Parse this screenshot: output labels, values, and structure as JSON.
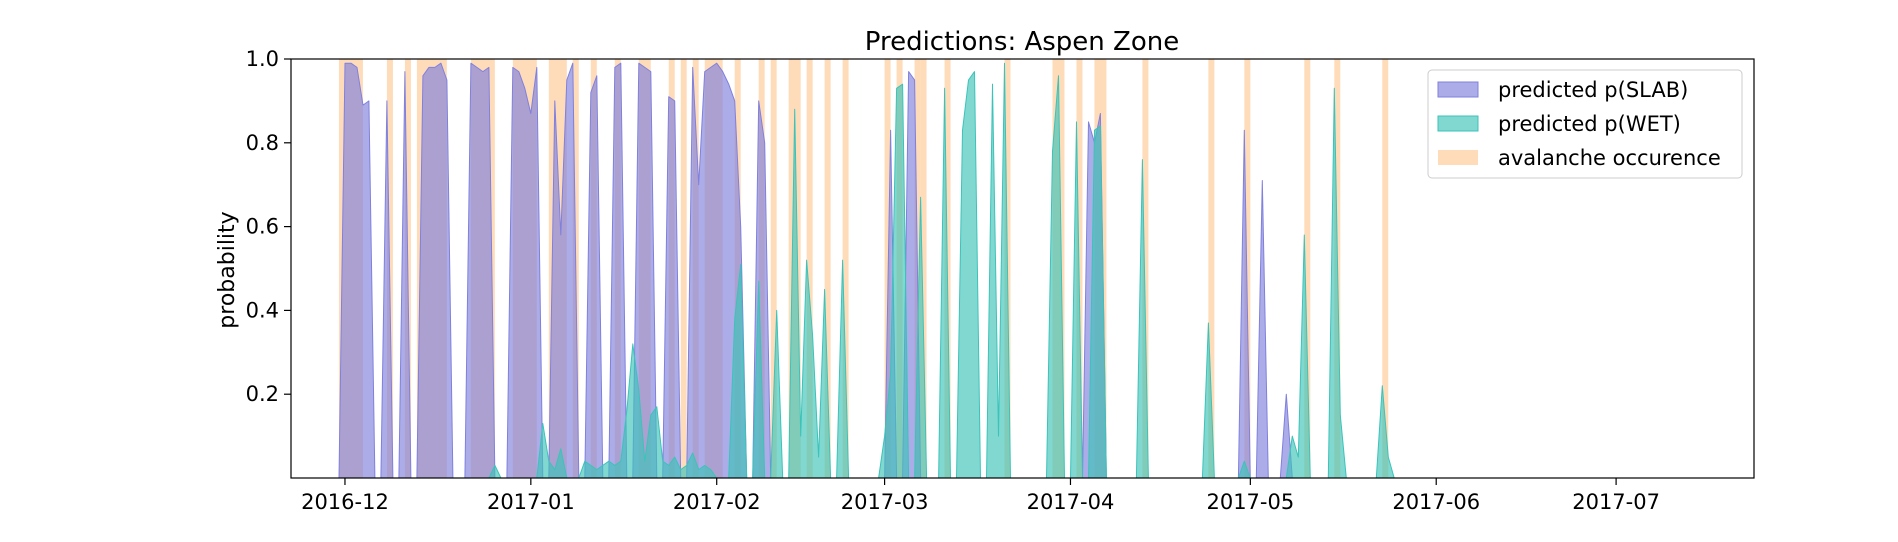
{
  "chart_data": {
    "type": "area",
    "title": "Predictions: Aspen Zone",
    "xlabel": "",
    "ylabel": "probability",
    "xlim": [
      "2016-11-22",
      "2017-07-24"
    ],
    "ylim": [
      0,
      1.0
    ],
    "x_ticks": [
      "2016-12",
      "2017-01",
      "2017-02",
      "2017-03",
      "2017-04",
      "2017-05",
      "2017-06",
      "2017-07"
    ],
    "y_ticks": [
      0.2,
      0.4,
      0.6,
      0.8,
      1.0
    ],
    "grid": false,
    "legend_position": "top-right",
    "series": [
      {
        "name": "predicted p(SLAB)",
        "color": "#8080dd",
        "points": [
          [
            "2016-11-30",
            0
          ],
          [
            "2016-12-01",
            0.99
          ],
          [
            "2016-12-02",
            0.99
          ],
          [
            "2016-12-03",
            0.98
          ],
          [
            "2016-12-04",
            0.89
          ],
          [
            "2016-12-05",
            0.9
          ],
          [
            "2016-12-06",
            0
          ],
          [
            "2016-12-07",
            0
          ],
          [
            "2016-12-08",
            0.9
          ],
          [
            "2016-12-09",
            0
          ],
          [
            "2016-12-10",
            0
          ],
          [
            "2016-12-11",
            0.97
          ],
          [
            "2016-12-12",
            0
          ],
          [
            "2016-12-13",
            0
          ],
          [
            "2016-12-14",
            0.96
          ],
          [
            "2016-12-15",
            0.98
          ],
          [
            "2016-12-16",
            0.98
          ],
          [
            "2016-12-17",
            0.99
          ],
          [
            "2016-12-18",
            0.95
          ],
          [
            "2016-12-19",
            0
          ],
          [
            "2016-12-21",
            0
          ],
          [
            "2016-12-22",
            0.99
          ],
          [
            "2016-12-23",
            0.98
          ],
          [
            "2016-12-24",
            0.97
          ],
          [
            "2016-12-25",
            0.98
          ],
          [
            "2016-12-26",
            0
          ],
          [
            "2016-12-28",
            0
          ],
          [
            "2016-12-29",
            0.98
          ],
          [
            "2016-12-30",
            0.97
          ],
          [
            "2016-12-31",
            0.93
          ],
          [
            "2017-01-01",
            0.87
          ],
          [
            "2017-01-02",
            0.98
          ],
          [
            "2017-01-03",
            0
          ],
          [
            "2017-01-04",
            0
          ],
          [
            "2017-01-05",
            0.9
          ],
          [
            "2017-01-06",
            0.58
          ],
          [
            "2017-01-07",
            0.95
          ],
          [
            "2017-01-08",
            0.99
          ],
          [
            "2017-01-09",
            0
          ],
          [
            "2017-01-10",
            0
          ],
          [
            "2017-01-11",
            0.92
          ],
          [
            "2017-01-12",
            0.96
          ],
          [
            "2017-01-13",
            0
          ],
          [
            "2017-01-14",
            0
          ],
          [
            "2017-01-15",
            0.98
          ],
          [
            "2017-01-16",
            0.99
          ],
          [
            "2017-01-17",
            0
          ],
          [
            "2017-01-18",
            0
          ],
          [
            "2017-01-19",
            0.99
          ],
          [
            "2017-01-20",
            0.98
          ],
          [
            "2017-01-21",
            0.97
          ],
          [
            "2017-01-22",
            0
          ],
          [
            "2017-01-23",
            0
          ],
          [
            "2017-01-24",
            0.91
          ],
          [
            "2017-01-25",
            0.9
          ],
          [
            "2017-01-26",
            0
          ],
          [
            "2017-01-27",
            0
          ],
          [
            "2017-01-28",
            0.98
          ],
          [
            "2017-01-29",
            0.7
          ],
          [
            "2017-01-30",
            0.97
          ],
          [
            "2017-01-31",
            0.98
          ],
          [
            "2017-02-01",
            0.99
          ],
          [
            "2017-02-02",
            0.97
          ],
          [
            "2017-02-03",
            0.94
          ],
          [
            "2017-02-04",
            0.9
          ],
          [
            "2017-02-05",
            0.6
          ],
          [
            "2017-02-06",
            0
          ],
          [
            "2017-02-07",
            0
          ],
          [
            "2017-02-08",
            0.9
          ],
          [
            "2017-02-09",
            0.8
          ],
          [
            "2017-02-10",
            0
          ],
          [
            "2017-03-01",
            0
          ],
          [
            "2017-03-02",
            0.83
          ],
          [
            "2017-03-03",
            0
          ],
          [
            "2017-03-04",
            0
          ],
          [
            "2017-03-05",
            0.97
          ],
          [
            "2017-03-06",
            0.95
          ],
          [
            "2017-03-07",
            0
          ],
          [
            "2017-04-03",
            0
          ],
          [
            "2017-04-04",
            0.85
          ],
          [
            "2017-04-05",
            0.8
          ],
          [
            "2017-04-06",
            0.87
          ],
          [
            "2017-04-07",
            0
          ],
          [
            "2017-04-29",
            0
          ],
          [
            "2017-04-30",
            0.83
          ],
          [
            "2017-05-01",
            0
          ],
          [
            "2017-05-02",
            0
          ],
          [
            "2017-05-03",
            0.71
          ],
          [
            "2017-05-04",
            0
          ],
          [
            "2017-05-06",
            0
          ],
          [
            "2017-05-07",
            0.2
          ],
          [
            "2017-05-08",
            0
          ]
        ]
      },
      {
        "name": "predicted p(WET)",
        "color": "#3cc3b9",
        "points": [
          [
            "2016-11-30",
            0
          ],
          [
            "2016-12-25",
            0
          ],
          [
            "2016-12-26",
            0.03
          ],
          [
            "2016-12-27",
            0
          ],
          [
            "2017-01-02",
            0
          ],
          [
            "2017-01-03",
            0.13
          ],
          [
            "2017-01-04",
            0.04
          ],
          [
            "2017-01-05",
            0.02
          ],
          [
            "2017-01-06",
            0.07
          ],
          [
            "2017-01-07",
            0
          ],
          [
            "2017-01-09",
            0
          ],
          [
            "2017-01-10",
            0.04
          ],
          [
            "2017-01-11",
            0.03
          ],
          [
            "2017-01-12",
            0.02
          ],
          [
            "2017-01-13",
            0.03
          ],
          [
            "2017-01-14",
            0.04
          ],
          [
            "2017-01-15",
            0.03
          ],
          [
            "2017-01-16",
            0.04
          ],
          [
            "2017-01-17",
            0.16
          ],
          [
            "2017-01-18",
            0.32
          ],
          [
            "2017-01-19",
            0.21
          ],
          [
            "2017-01-20",
            0.04
          ],
          [
            "2017-01-21",
            0.15
          ],
          [
            "2017-01-22",
            0.17
          ],
          [
            "2017-01-23",
            0.04
          ],
          [
            "2017-01-24",
            0.03
          ],
          [
            "2017-01-25",
            0.05
          ],
          [
            "2017-01-26",
            0.02
          ],
          [
            "2017-01-27",
            0.03
          ],
          [
            "2017-01-28",
            0.06
          ],
          [
            "2017-01-29",
            0.02
          ],
          [
            "2017-01-30",
            0.03
          ],
          [
            "2017-01-31",
            0.02
          ],
          [
            "2017-02-01",
            0
          ],
          [
            "2017-02-03",
            0
          ],
          [
            "2017-02-04",
            0.38
          ],
          [
            "2017-02-05",
            0.51
          ],
          [
            "2017-02-06",
            0
          ],
          [
            "2017-02-07",
            0
          ],
          [
            "2017-02-08",
            0.47
          ],
          [
            "2017-02-09",
            0
          ],
          [
            "2017-02-10",
            0
          ],
          [
            "2017-02-11",
            0.4
          ],
          [
            "2017-02-12",
            0
          ],
          [
            "2017-02-13",
            0
          ],
          [
            "2017-02-14",
            0.88
          ],
          [
            "2017-02-15",
            0.1
          ],
          [
            "2017-02-16",
            0.52
          ],
          [
            "2017-02-17",
            0.34
          ],
          [
            "2017-02-18",
            0.05
          ],
          [
            "2017-02-19",
            0.45
          ],
          [
            "2017-02-20",
            0
          ],
          [
            "2017-02-21",
            0
          ],
          [
            "2017-02-22",
            0.52
          ],
          [
            "2017-02-23",
            0
          ],
          [
            "2017-02-28",
            0
          ],
          [
            "2017-03-01",
            0.1
          ],
          [
            "2017-03-02",
            0.25
          ],
          [
            "2017-03-03",
            0.93
          ],
          [
            "2017-03-04",
            0.94
          ],
          [
            "2017-03-05",
            0
          ],
          [
            "2017-03-06",
            0
          ],
          [
            "2017-03-07",
            0.67
          ],
          [
            "2017-03-08",
            0
          ],
          [
            "2017-03-10",
            0
          ],
          [
            "2017-03-11",
            0.93
          ],
          [
            "2017-03-12",
            0
          ],
          [
            "2017-03-13",
            0
          ],
          [
            "2017-03-14",
            0.83
          ],
          [
            "2017-03-15",
            0.95
          ],
          [
            "2017-03-16",
            0.97
          ],
          [
            "2017-03-17",
            0
          ],
          [
            "2017-03-18",
            0
          ],
          [
            "2017-03-19",
            0.94
          ],
          [
            "2017-03-20",
            0.1
          ],
          [
            "2017-03-21",
            0.99
          ],
          [
            "2017-03-22",
            0
          ],
          [
            "2017-03-28",
            0
          ],
          [
            "2017-03-29",
            0.78
          ],
          [
            "2017-03-30",
            0.96
          ],
          [
            "2017-03-31",
            0
          ],
          [
            "2017-04-01",
            0
          ],
          [
            "2017-04-02",
            0.85
          ],
          [
            "2017-04-03",
            0
          ],
          [
            "2017-04-04",
            0
          ],
          [
            "2017-04-05",
            0.83
          ],
          [
            "2017-04-06",
            0.84
          ],
          [
            "2017-04-07",
            0
          ],
          [
            "2017-04-12",
            0
          ],
          [
            "2017-04-13",
            0.76
          ],
          [
            "2017-04-14",
            0
          ],
          [
            "2017-04-23",
            0
          ],
          [
            "2017-04-24",
            0.37
          ],
          [
            "2017-04-25",
            0
          ],
          [
            "2017-04-29",
            0
          ],
          [
            "2017-04-30",
            0.04
          ],
          [
            "2017-05-01",
            0
          ],
          [
            "2017-05-07",
            0
          ],
          [
            "2017-05-08",
            0.1
          ],
          [
            "2017-05-09",
            0.05
          ],
          [
            "2017-05-10",
            0.58
          ],
          [
            "2017-05-11",
            0
          ],
          [
            "2017-05-14",
            0
          ],
          [
            "2017-05-15",
            0.93
          ],
          [
            "2017-05-16",
            0.15
          ],
          [
            "2017-05-17",
            0
          ],
          [
            "2017-05-22",
            0
          ],
          [
            "2017-05-23",
            0.22
          ],
          [
            "2017-05-24",
            0.05
          ],
          [
            "2017-05-25",
            0
          ],
          [
            "2017-07-24",
            0
          ]
        ]
      }
    ],
    "avalanche_occurrence": {
      "name": "avalanche occurence",
      "color": "#ffdcb9",
      "spans": [
        [
          "2016-11-30",
          "2016-12-04"
        ],
        [
          "2016-12-08",
          "2016-12-09"
        ],
        [
          "2016-12-11",
          "2016-12-12"
        ],
        [
          "2016-12-13",
          "2016-12-18"
        ],
        [
          "2016-12-22",
          "2016-12-26"
        ],
        [
          "2016-12-29",
          "2017-01-02"
        ],
        [
          "2017-01-04",
          "2017-01-07"
        ],
        [
          "2017-01-08",
          "2017-01-09"
        ],
        [
          "2017-01-11",
          "2017-01-12"
        ],
        [
          "2017-01-15",
          "2017-01-16"
        ],
        [
          "2017-01-19",
          "2017-01-21"
        ],
        [
          "2017-01-24",
          "2017-01-25"
        ],
        [
          "2017-01-26",
          "2017-01-27"
        ],
        [
          "2017-01-28",
          "2017-01-29"
        ],
        [
          "2017-01-30",
          "2017-02-02"
        ],
        [
          "2017-02-04",
          "2017-02-05"
        ],
        [
          "2017-02-08",
          "2017-02-09"
        ],
        [
          "2017-02-10",
          "2017-02-11"
        ],
        [
          "2017-02-13",
          "2017-02-15"
        ],
        [
          "2017-02-16",
          "2017-02-17"
        ],
        [
          "2017-02-19",
          "2017-02-20"
        ],
        [
          "2017-02-22",
          "2017-02-23"
        ],
        [
          "2017-03-01",
          "2017-03-02"
        ],
        [
          "2017-03-03",
          "2017-03-04"
        ],
        [
          "2017-03-06",
          "2017-03-07"
        ],
        [
          "2017-03-07",
          "2017-03-08"
        ],
        [
          "2017-03-11",
          "2017-03-12"
        ],
        [
          "2017-03-21",
          "2017-03-22"
        ],
        [
          "2017-03-29",
          "2017-03-31"
        ],
        [
          "2017-04-02",
          "2017-04-03"
        ],
        [
          "2017-04-05",
          "2017-04-07"
        ],
        [
          "2017-04-13",
          "2017-04-14"
        ],
        [
          "2017-04-24",
          "2017-04-25"
        ],
        [
          "2017-04-30",
          "2017-05-01"
        ],
        [
          "2017-05-10",
          "2017-05-11"
        ],
        [
          "2017-05-15",
          "2017-05-16"
        ],
        [
          "2017-05-23",
          "2017-05-24"
        ]
      ]
    }
  }
}
